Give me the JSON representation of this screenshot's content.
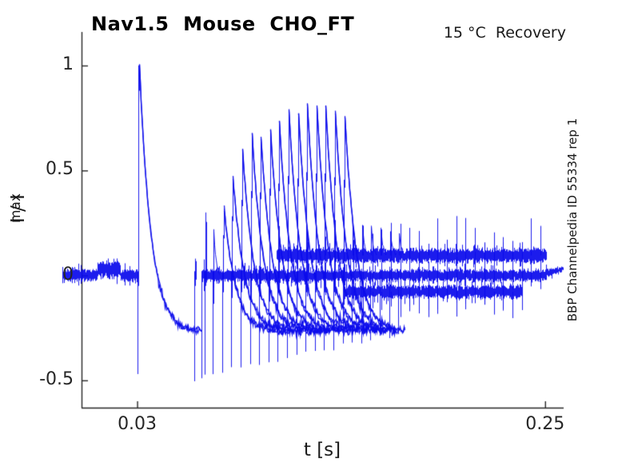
{
  "figure": {
    "title": "Nav1.5  Mouse  CHO_FT",
    "corner_annotation": "15 °C  Recovery",
    "side_label": "BBP Channelpedia ID 55334 rep 1",
    "xlabel": "t [s]",
    "ylabel": "I / I_max",
    "ylabel_main": "I / I",
    "ylabel_sub": "max"
  },
  "chart_data": {
    "type": "line",
    "title": "Nav1.5  Mouse  CHO_FT",
    "annotation": "15 °C  Recovery",
    "side_label": "BBP Channelpedia ID 55334 rep 1",
    "xlabel": "t [s]",
    "ylabel": "I / I_max",
    "xlim": [
      0,
      0.26
    ],
    "ylim": [
      -0.63,
      1.16
    ],
    "xticks": [
      0.03,
      0.25
    ],
    "yticks": [
      1,
      0.5,
      0,
      -0.5
    ],
    "grid": false,
    "legend": null,
    "line_color": "#0b0bec",
    "axis_color": "#262626",
    "trace": {
      "t_start": -0.0104,
      "t_end": 0.2595,
      "baseline_level": 0,
      "noise_sd": 0.017,
      "prepulse_step": {
        "t0": 0.0086,
        "t1": 0.0207,
        "level": 0.028,
        "sd": 0.024
      },
      "p1_pulse": {
        "onset": 0.0302,
        "peak": 1.0,
        "decay_tau": 0.00625,
        "tail_level": -0.27,
        "end": 0.0645,
        "onset_needle": -0.47,
        "end_needle": -0.49
      },
      "p2_events": [
        [
          0.061,
          0.08
        ],
        [
          0.0662,
          0.3
        ],
        [
          0.0709,
          0.22
        ],
        [
          0.0761,
          0.32
        ],
        [
          0.0808,
          0.47
        ],
        [
          0.086,
          0.6
        ],
        [
          0.0911,
          0.67
        ],
        [
          0.0959,
          0.66
        ],
        [
          0.101,
          0.69
        ],
        [
          0.1058,
          0.73
        ],
        [
          0.1109,
          0.79
        ],
        [
          0.1161,
          0.77
        ],
        [
          0.1208,
          0.82
        ],
        [
          0.126,
          0.81
        ],
        [
          0.1307,
          0.81
        ],
        [
          0.1359,
          0.78
        ],
        [
          0.1411,
          0.76
        ],
        [
          0.1458,
          0.25
        ],
        [
          0.151,
          0.24
        ],
        [
          0.1557,
          0.23
        ],
        [
          0.1609,
          0.22
        ],
        [
          0.166,
          0.21
        ],
        [
          0.1708,
          0.2
        ]
      ],
      "p2_params": {
        "decay_tau": 0.00625,
        "tail_level": -0.27,
        "fan_duration": 0.033,
        "fan_t_max": 0.174,
        "narrow_count": 2,
        "broad_threshold": 0.3,
        "needle_depth_first": -0.49,
        "needle_depth_last": -0.28
      },
      "sustained_band": {
        "level": 0.095,
        "t0": 0.105,
        "t1": 0.2505,
        "spike_amp": 0.19
      },
      "lower_band": {
        "level": -0.078,
        "t0": 0.142,
        "t1": 0.237
      },
      "artifact_period": 0.00504,
      "artifact_t0": 0.061,
      "artifact_t1": 0.2525
    }
  }
}
